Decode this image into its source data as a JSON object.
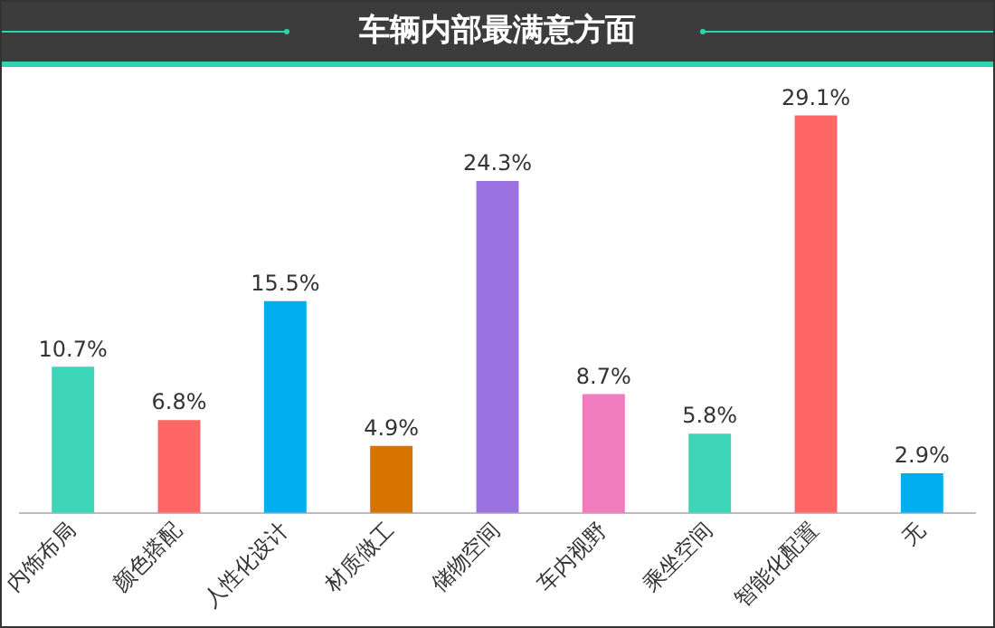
{
  "chart_data": {
    "type": "bar",
    "title": "车辆内部最满意方面",
    "categories": [
      "内饰布局",
      "颜色搭配",
      "人性化设计",
      "材质做工",
      "储物空间",
      "车内视野",
      "乘坐空间",
      "智能化配置",
      "无"
    ],
    "values": [
      10.7,
      6.8,
      15.5,
      4.9,
      24.3,
      8.7,
      5.8,
      29.1,
      2.9
    ],
    "colors": [
      "#3dd5b8",
      "#ff6666",
      "#00aeef",
      "#d97300",
      "#9b72e0",
      "#f07bbf",
      "#3dd5b8",
      "#ff6666",
      "#00aeef"
    ],
    "value_labels": [
      "10.7%",
      "6.8%",
      "15.5%",
      "4.9%",
      "24.3%",
      "8.7%",
      "5.8%",
      "29.1%",
      "2.9%"
    ],
    "grid": false,
    "legend": false
  }
}
